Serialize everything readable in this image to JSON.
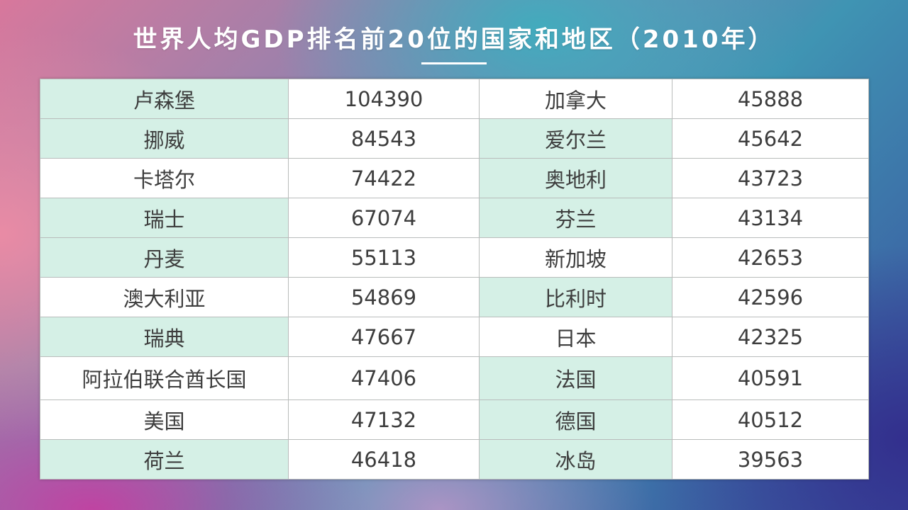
{
  "title": "世界人均GDP排名前20位的国家和地区（2010年）",
  "colors": {
    "highlight_cell": "#d5f0e6",
    "text": "#3d3d3d",
    "title": "#ffffff"
  },
  "rows": [
    {
      "left_country": "卢森堡",
      "left_value": "104390",
      "right_country": "加拿大",
      "right_value": "45888"
    },
    {
      "left_country": "挪威",
      "left_value": "84543",
      "right_country": "爱尔兰",
      "right_value": "45642"
    },
    {
      "left_country": "卡塔尔",
      "left_value": "74422",
      "right_country": "奥地利",
      "right_value": "43723"
    },
    {
      "left_country": "瑞士",
      "left_value": "67074",
      "right_country": "芬兰",
      "right_value": "43134"
    },
    {
      "left_country": "丹麦",
      "left_value": "55113",
      "right_country": "新加坡",
      "right_value": "42653"
    },
    {
      "left_country": "澳大利亚",
      "left_value": "54869",
      "right_country": "比利时",
      "right_value": "42596"
    },
    {
      "left_country": "瑞典",
      "left_value": "47667",
      "right_country": "日本",
      "right_value": "42325"
    },
    {
      "left_country": "阿拉伯联合酋长国",
      "left_value": "47406",
      "right_country": "法国",
      "right_value": "40591"
    },
    {
      "left_country": "美国",
      "left_value": "47132",
      "right_country": "德国",
      "right_value": "40512"
    },
    {
      "left_country": "荷兰",
      "left_value": "46418",
      "right_country": "冰岛",
      "right_value": "39563"
    }
  ]
}
